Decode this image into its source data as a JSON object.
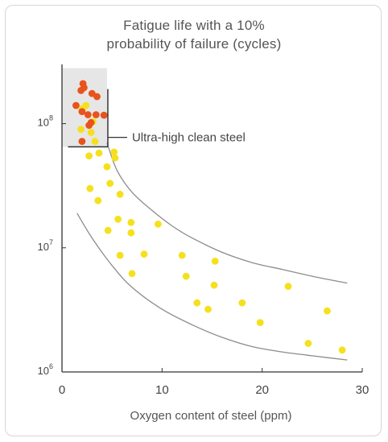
{
  "chart_data": {
    "type": "scatter",
    "title_line1": "Fatigue life with a 10%",
    "title_line2": "probability of failure (cycles)",
    "xlabel": "Oxygen content of steel (ppm)",
    "ylabel": "",
    "xlim": [
      0,
      30
    ],
    "ylim": [
      1000000,
      300000000
    ],
    "yscale": "log",
    "xticks": [
      0,
      10,
      20,
      30
    ],
    "yticks": [
      {
        "value": 1000000,
        "base": "10",
        "exp": "6"
      },
      {
        "value": 10000000,
        "base": "10",
        "exp": "7"
      },
      {
        "value": 100000000,
        "base": "10",
        "exp": "8"
      }
    ],
    "annotation": "Ultra-high clean steel",
    "highlight_region": {
      "x": [
        0,
        4.5
      ],
      "y": [
        65000000,
        280000000
      ]
    },
    "colors": {
      "red": "#e8531c",
      "yellow": "#f5e01d",
      "curve": "#8c8c8c",
      "box": "#e6e6e6",
      "axis": "#333333"
    },
    "series": [
      {
        "color": "red",
        "points": [
          [
            2.1,
            210000000
          ],
          [
            1.9,
            185000000
          ],
          [
            2.2,
            195000000
          ],
          [
            3.0,
            175000000
          ],
          [
            3.5,
            165000000
          ],
          [
            1.4,
            140000000
          ],
          [
            2.0,
            125000000
          ],
          [
            2.6,
            118000000
          ],
          [
            3.4,
            118000000
          ],
          [
            4.2,
            117000000
          ],
          [
            2.7,
            97000000
          ],
          [
            2.9,
            102000000
          ],
          [
            2.0,
            72000000
          ]
        ]
      },
      {
        "color": "yellow",
        "points": [
          [
            2.0,
            132000000
          ],
          [
            2.4,
            140000000
          ],
          [
            3.1,
            104000000
          ],
          [
            1.9,
            90000000
          ],
          [
            3.3,
            72000000
          ],
          [
            2.9,
            85000000
          ],
          [
            2.7,
            55000000
          ],
          [
            3.7,
            58000000
          ],
          [
            4.5,
            45000000
          ],
          [
            5.2,
            59000000
          ],
          [
            5.3,
            53000000
          ],
          [
            2.8,
            30000000
          ],
          [
            4.8,
            33000000
          ],
          [
            3.6,
            24000000
          ],
          [
            5.8,
            27000000
          ],
          [
            5.6,
            17000000
          ],
          [
            6.9,
            16000000
          ],
          [
            6.9,
            13200000
          ],
          [
            4.6,
            13800000
          ],
          [
            9.6,
            15500000
          ],
          [
            5.8,
            8700000
          ],
          [
            8.2,
            8900000
          ],
          [
            7.0,
            6200000
          ],
          [
            12.0,
            8700000
          ],
          [
            12.4,
            5900000
          ],
          [
            15.3,
            7800000
          ],
          [
            15.2,
            5000000
          ],
          [
            13.5,
            3600000
          ],
          [
            14.6,
            3200000
          ],
          [
            18.0,
            3600000
          ],
          [
            19.8,
            2500000
          ],
          [
            22.6,
            4900000
          ],
          [
            26.5,
            3100000
          ],
          [
            24.6,
            1700000
          ],
          [
            28.0,
            1500000
          ]
        ]
      }
    ],
    "curves": [
      {
        "name": "",
        "x": [
          4.5,
          5.5,
          7,
          9,
          11,
          13,
          16,
          19,
          22,
          25,
          28.5
        ],
        "y": [
          70000000,
          42000000,
          28000000,
          20000000,
          15000000,
          12000000,
          9200000,
          7600000,
          6700000,
          5900000,
          5200000
        ]
      },
      {
        "name": "",
        "x": [
          1.5,
          3,
          5,
          7,
          10,
          13,
          16,
          19,
          22,
          25,
          28.5
        ],
        "y": [
          19000000,
          12000000,
          7200000,
          4800000,
          3200000,
          2400000,
          1900000,
          1600000,
          1450000,
          1350000,
          1250000
        ]
      }
    ]
  }
}
